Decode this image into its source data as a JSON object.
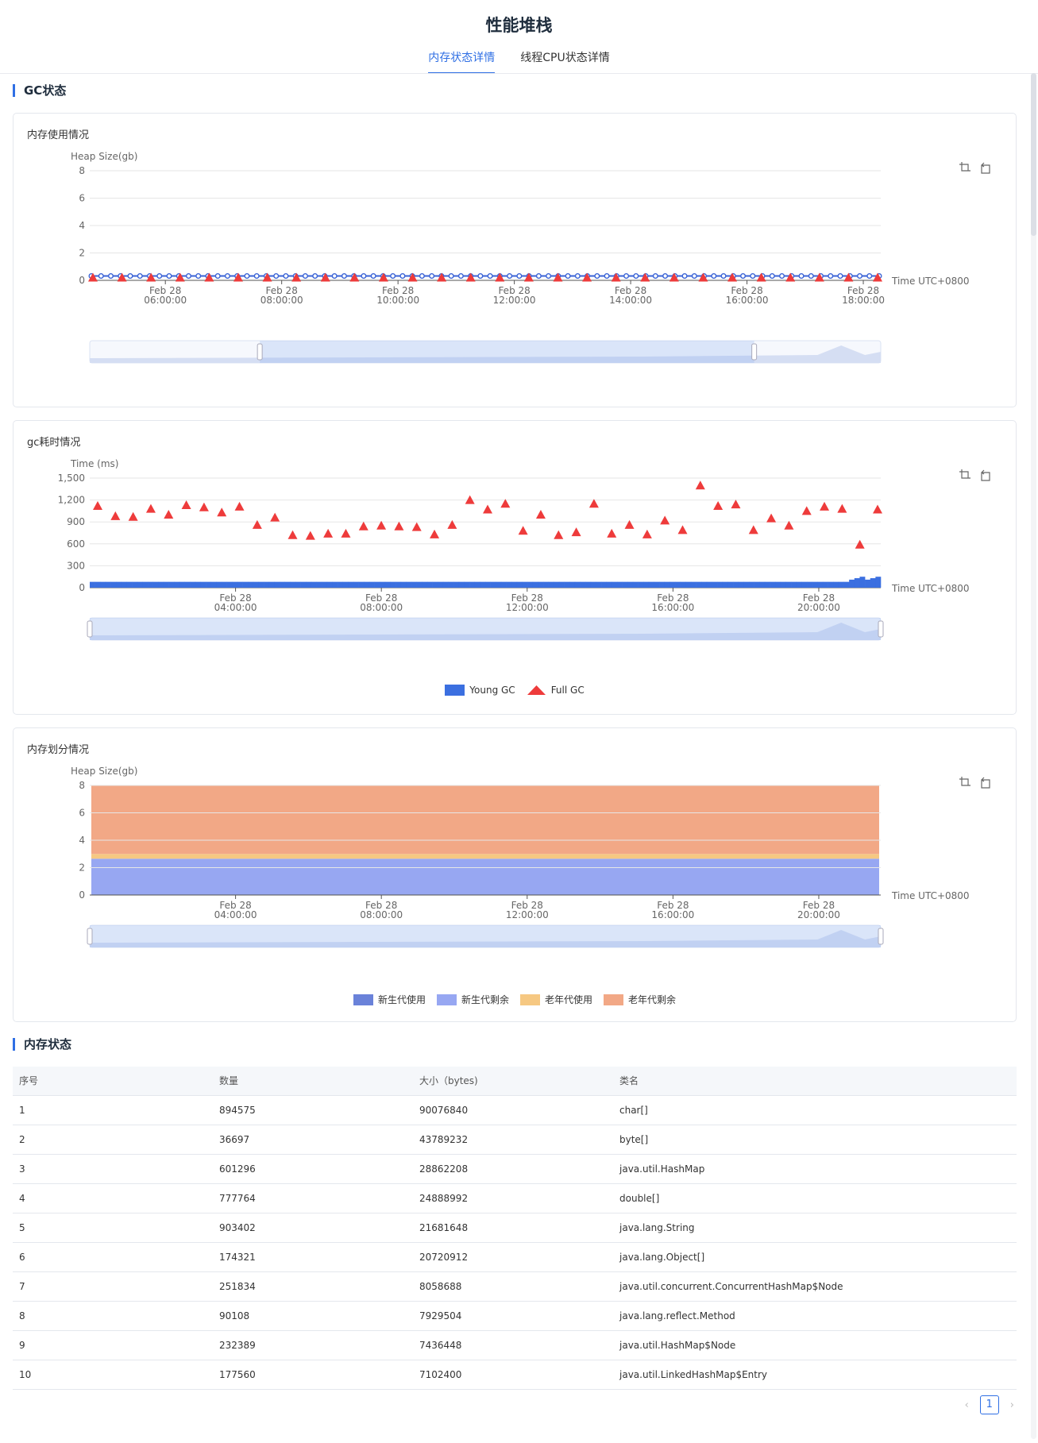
{
  "page": {
    "title": "性能堆栈"
  },
  "tabs": [
    {
      "label": "内存状态详情",
      "active": true
    },
    {
      "label": "线程CPU状态详情",
      "active": false
    }
  ],
  "gc_section": {
    "title": "GC状态"
  },
  "memory_section": {
    "title": "内存状态"
  },
  "toolbox": {
    "zoom_icon": "data-zoom-icon",
    "restore_icon": "zoom-reset-icon"
  },
  "colors": {
    "accent": "#2f6fe4",
    "heap_line": "#3a63d6",
    "full_gc": "#ee3b3b",
    "young_gc": "#3b6fe0",
    "new_used": "#6a82d9",
    "new_free": "#97a7f2",
    "old_used": "#f6c882",
    "old_free": "#f2a886"
  },
  "chart_data": [
    {
      "type": "line",
      "title": "内存使用情况",
      "ylabel": "Heap Size(gb)",
      "xlabel": "Time UTC+0800",
      "ylim": [
        0,
        8
      ],
      "yticks": [
        "0",
        "2",
        "4",
        "6",
        "8"
      ],
      "xticks": [
        [
          "Feb 28",
          "06:00:00"
        ],
        [
          "Feb 28",
          "08:00:00"
        ],
        [
          "Feb 28",
          "10:00:00"
        ],
        [
          "Feb 28",
          "12:00:00"
        ],
        [
          "Feb 28",
          "14:00:00"
        ],
        [
          "Feb 28",
          "16:00:00"
        ],
        [
          "Feb 28",
          "18:00:00"
        ]
      ],
      "x_range_hours": [
        4.7,
        18.3
      ],
      "heap_used_level": 0.32,
      "full_gc_level": 0.2,
      "heap_points": 82,
      "full_gc_points": 28,
      "zoom_window": [
        0.215,
        0.84
      ]
    },
    {
      "type": "scatter",
      "title": "gc耗时情况",
      "ylabel": "Time (ms)",
      "xlabel": "Time UTC+0800",
      "ylim": [
        0,
        1500
      ],
      "yticks": [
        "0",
        "300",
        "600",
        "900",
        "1,200",
        "1,500"
      ],
      "xticks": [
        [
          "Feb 28",
          "04:00:00"
        ],
        [
          "Feb 28",
          "08:00:00"
        ],
        [
          "Feb 28",
          "12:00:00"
        ],
        [
          "Feb 28",
          "16:00:00"
        ],
        [
          "Feb 28",
          "20:00:00"
        ]
      ],
      "x_range_hours": [
        0,
        21.7
      ],
      "series": [
        {
          "name": "Young GC",
          "values_level": 80
        },
        {
          "name": "Full GC",
          "values": [
            1120,
            980,
            970,
            1080,
            1000,
            1130,
            1100,
            1030,
            1110,
            860,
            960,
            720,
            710,
            740,
            740,
            840,
            850,
            840,
            830,
            730,
            860,
            1200,
            1070,
            1150,
            780,
            1000,
            720,
            760,
            1150,
            740,
            860,
            730,
            920,
            790,
            1400,
            1120,
            1140,
            790,
            950,
            850,
            1050,
            1110,
            1080,
            590,
            1070
          ]
        }
      ],
      "legend": [
        "Young GC",
        "Full GC"
      ]
    },
    {
      "type": "area",
      "title": "内存划分情况",
      "ylabel": "Heap Size(gb)",
      "xlabel": "Time UTC+0800",
      "ylim": [
        0,
        8
      ],
      "yticks": [
        "0",
        "2",
        "4",
        "6",
        "8"
      ],
      "xticks": [
        [
          "Feb 28",
          "04:00:00"
        ],
        [
          "Feb 28",
          "08:00:00"
        ],
        [
          "Feb 28",
          "12:00:00"
        ],
        [
          "Feb 28",
          "16:00:00"
        ],
        [
          "Feb 28",
          "20:00:00"
        ]
      ],
      "x_range_hours": [
        0,
        21.7
      ],
      "series": [
        {
          "name": "新生代使用",
          "value": 0.05
        },
        {
          "name": "新生代剩余",
          "value": 2.6
        },
        {
          "name": "老年代使用",
          "value": 0.35
        },
        {
          "name": "老年代剩余",
          "value": 5.0
        }
      ],
      "legend": [
        "新生代使用",
        "新生代剩余",
        "老年代使用",
        "老年代剩余"
      ]
    }
  ],
  "table": {
    "headers": [
      "序号",
      "数量",
      "大小（bytes)",
      "类名"
    ],
    "rows": [
      [
        "1",
        "894575",
        "90076840",
        "char[]"
      ],
      [
        "2",
        "36697",
        "43789232",
        "byte[]"
      ],
      [
        "3",
        "601296",
        "28862208",
        "java.util.HashMap"
      ],
      [
        "4",
        "777764",
        "24888992",
        "double[]"
      ],
      [
        "5",
        "903402",
        "21681648",
        "java.lang.String"
      ],
      [
        "6",
        "174321",
        "20720912",
        "java.lang.Object[]"
      ],
      [
        "7",
        "251834",
        "8058688",
        "java.util.concurrent.ConcurrentHashMap$Node"
      ],
      [
        "8",
        "90108",
        "7929504",
        "java.lang.reflect.Method"
      ],
      [
        "9",
        "232389",
        "7436448",
        "java.util.HashMap$Node"
      ],
      [
        "10",
        "177560",
        "7102400",
        "java.util.LinkedHashMap$Entry"
      ]
    ]
  },
  "pagination": {
    "prev": "‹",
    "current": "1",
    "next": "›"
  }
}
